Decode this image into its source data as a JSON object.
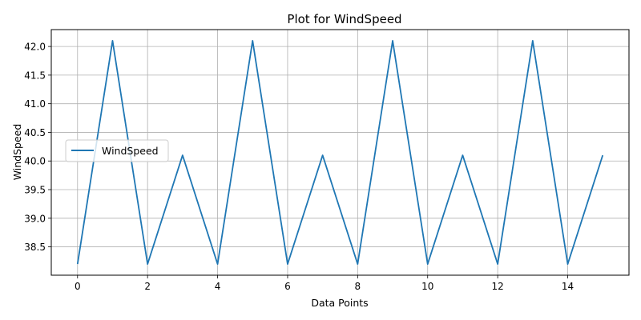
{
  "chart_data": {
    "type": "line",
    "title": "Plot for WindSpeed",
    "xlabel": "Data Points",
    "ylabel": "WindSpeed",
    "x": [
      0,
      1,
      2,
      3,
      4,
      5,
      6,
      7,
      8,
      9,
      10,
      11,
      12,
      13,
      14,
      15
    ],
    "series": [
      {
        "name": "WindSpeed",
        "color": "#1f77b4",
        "values": [
          38.2,
          42.1,
          38.2,
          40.1,
          38.2,
          42.1,
          38.2,
          40.1,
          38.2,
          42.1,
          38.2,
          40.1,
          38.2,
          42.1,
          38.2,
          40.1
        ]
      }
    ],
    "xlim": [
      -0.75,
      15.75
    ],
    "ylim": [
      38.005,
      42.295
    ],
    "xticks": [
      0,
      2,
      4,
      6,
      8,
      10,
      12,
      14
    ],
    "yticks": [
      38.5,
      39.0,
      39.5,
      40.0,
      40.5,
      41.0,
      41.5,
      42.0
    ],
    "ytick_labels": [
      "38.5",
      "39.0",
      "39.5",
      "40.0",
      "40.5",
      "41.0",
      "41.5",
      "42.0"
    ],
    "grid": true,
    "legend_position": "center-left"
  }
}
